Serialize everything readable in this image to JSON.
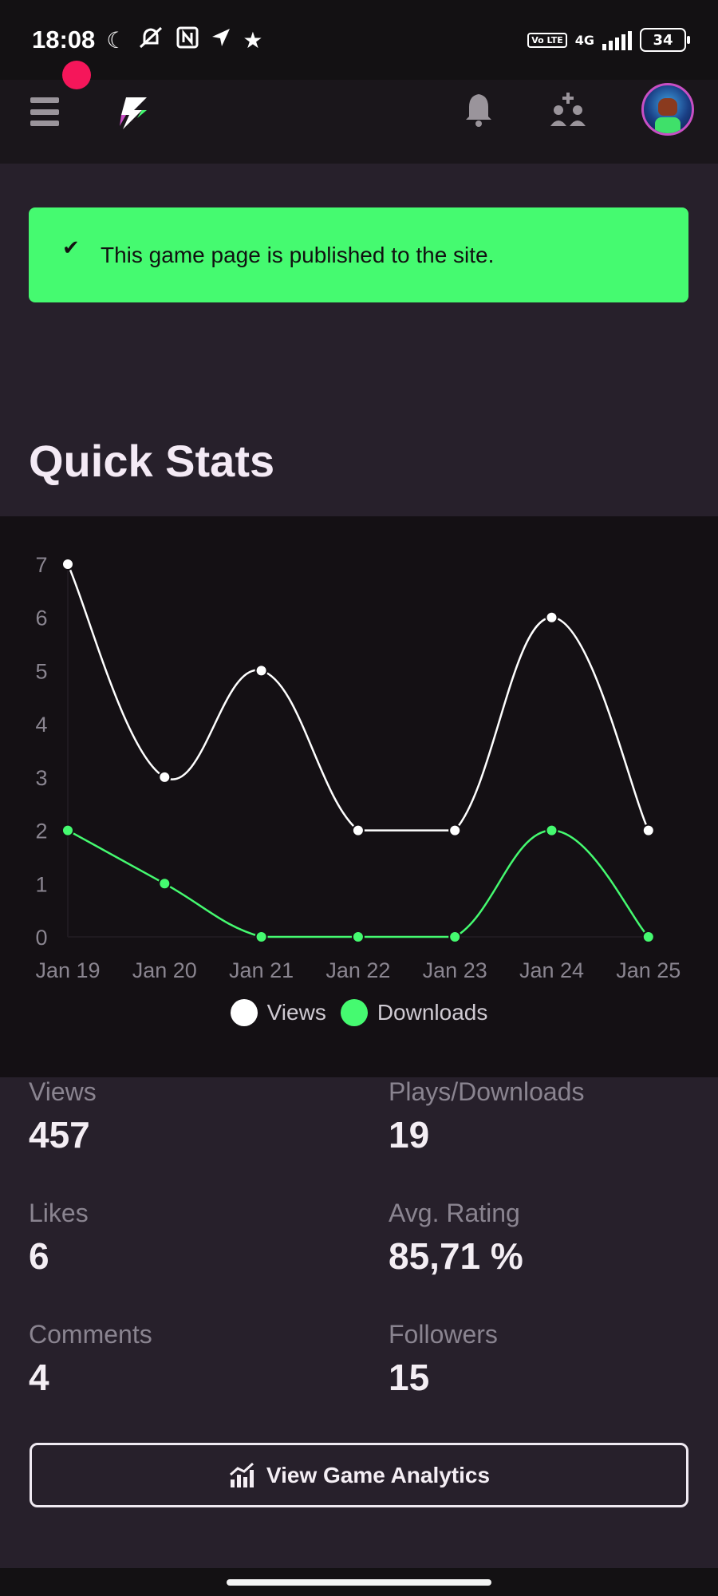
{
  "status_bar": {
    "time": "18:08",
    "icons": [
      "moon-icon",
      "mute-icon",
      "nfc-icon",
      "location-icon",
      "star-icon"
    ],
    "volte": "Vo LTE",
    "network": "4G",
    "battery": "34"
  },
  "navbar": {
    "icons": [
      "menu-icon",
      "logo-icon",
      "bell-icon",
      "add-friend-icon",
      "avatar"
    ]
  },
  "banner": {
    "message": "This game page is published to the site.",
    "color": "#45fa70"
  },
  "section": {
    "title": "Quick Stats"
  },
  "chart_data": {
    "type": "line",
    "categories": [
      "Jan 19",
      "Jan 20",
      "Jan 21",
      "Jan 22",
      "Jan 23",
      "Jan 24",
      "Jan 25"
    ],
    "series": [
      {
        "name": "Views",
        "values": [
          7,
          3,
          5,
          2,
          2,
          6,
          2
        ],
        "color": "#ffffff"
      },
      {
        "name": "Downloads",
        "values": [
          2,
          1,
          0,
          0,
          0,
          2,
          0
        ],
        "color": "#45fa70"
      }
    ],
    "yticks": [
      "0",
      "1",
      "2",
      "3",
      "4",
      "5",
      "6",
      "7"
    ],
    "ylim": [
      0,
      7
    ],
    "grid": false,
    "legend_position": "bottom"
  },
  "stats": [
    {
      "label": "Views",
      "value": "457"
    },
    {
      "label": "Plays/Downloads",
      "value": "19"
    },
    {
      "label": "Likes",
      "value": "6"
    },
    {
      "label": "Avg. Rating",
      "value": "85,71 %"
    },
    {
      "label": "Comments",
      "value": "4"
    },
    {
      "label": "Followers",
      "value": "15"
    }
  ],
  "analytics_button": {
    "label": "View Game Analytics",
    "icon": "analytics-chart-icon"
  }
}
